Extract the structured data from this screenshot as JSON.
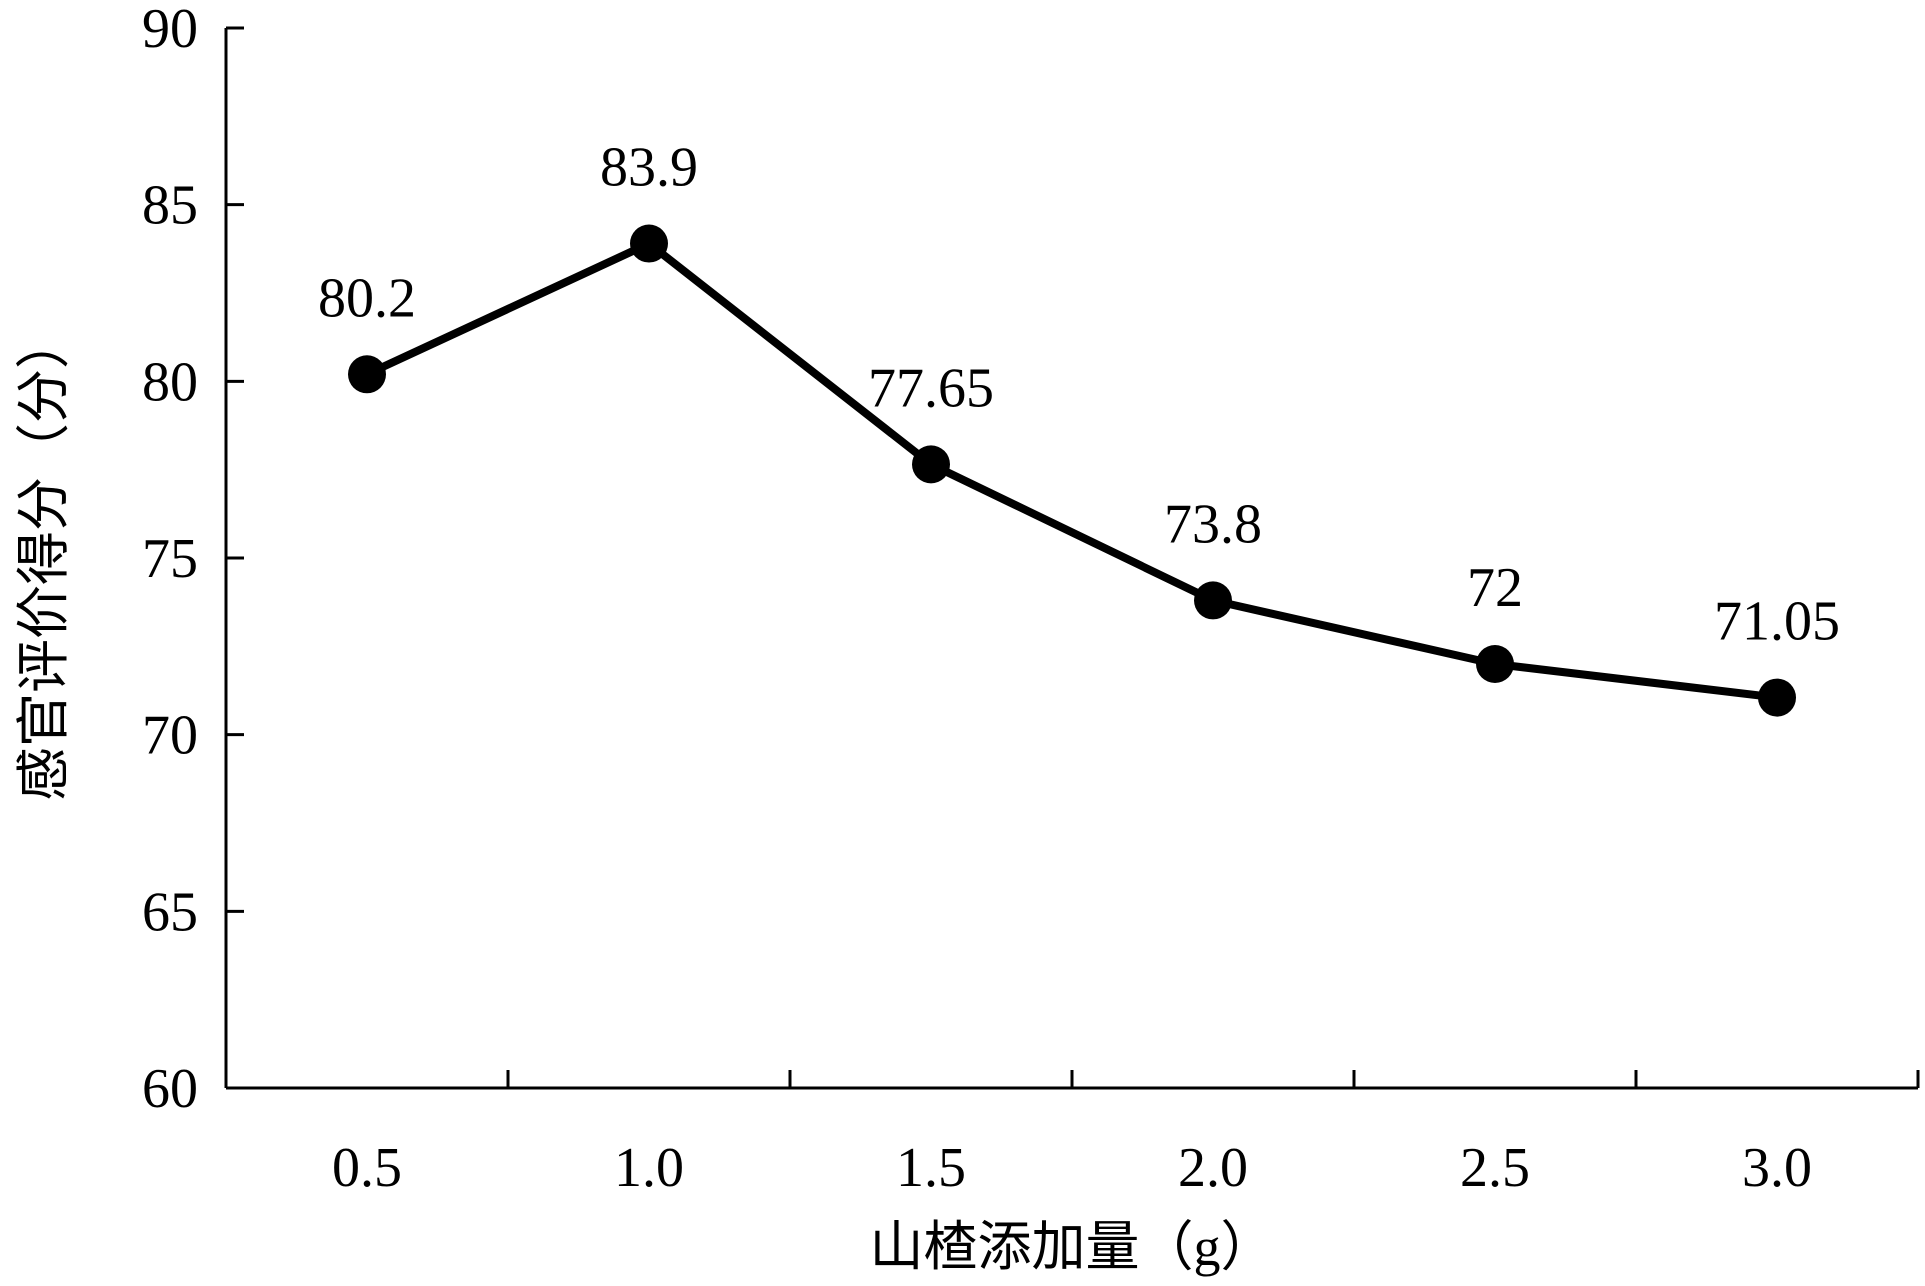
{
  "chart_data": {
    "type": "line",
    "x": [
      "0.5",
      "1.0",
      "1.5",
      "2.0",
      "2.5",
      "3.0"
    ],
    "series": [
      {
        "values": [
          80.2,
          83.9,
          77.65,
          73.8,
          72,
          71.05
        ]
      }
    ],
    "data_labels": [
      "80.2",
      "83.9",
      "77.65",
      "73.8",
      "72",
      "71.05"
    ],
    "xlabel": "山楂添加量（g）",
    "ylabel": "感官评价得分（分）",
    "ylim": [
      60,
      90
    ],
    "yticks": [
      60,
      65,
      70,
      75,
      80,
      85,
      90
    ],
    "grid": false,
    "line_color": "#000000",
    "marker": "filled-circle"
  }
}
